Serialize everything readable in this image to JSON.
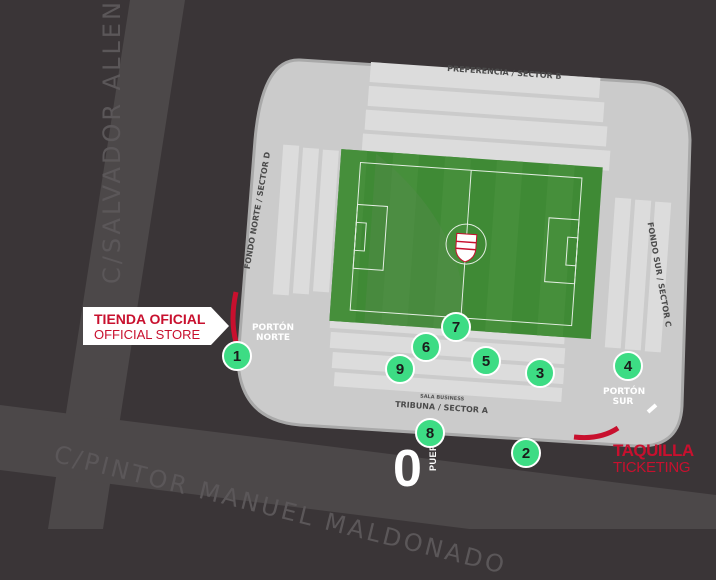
{
  "streets": {
    "north": "C/SALVADOR ALLENDE",
    "south": "C/PINTOR MANUEL MALDONADO"
  },
  "sectors": {
    "b": "PREFERENCIA / SECTOR B",
    "d": "FONDO NORTE / SECTOR D",
    "c": "FONDO SUR / SECTOR C",
    "a": "TRIBUNA / SECTOR A",
    "sala": "SALA BUSINESS"
  },
  "gates": {
    "norte": "PORTÓN NORTE",
    "sur": "PORTÓN SUR",
    "zero_number": "0",
    "zero_word": "PUERTA"
  },
  "store": {
    "title": "TIENDA OFICIAL",
    "subtitle": "OFFICIAL STORE"
  },
  "ticketing": {
    "title": "TAQUILLA",
    "subtitle": "TICKETING"
  },
  "badges": [
    "1",
    "2",
    "3",
    "4",
    "5",
    "6",
    "7",
    "8",
    "9"
  ],
  "colors": {
    "badge": "#3ddc84",
    "accent": "#c8102e",
    "pitch": "#3f8a35",
    "background": "#3a3537",
    "stadium": "#c9c9c9"
  },
  "icons": {
    "crest": "club-crest-icon"
  }
}
